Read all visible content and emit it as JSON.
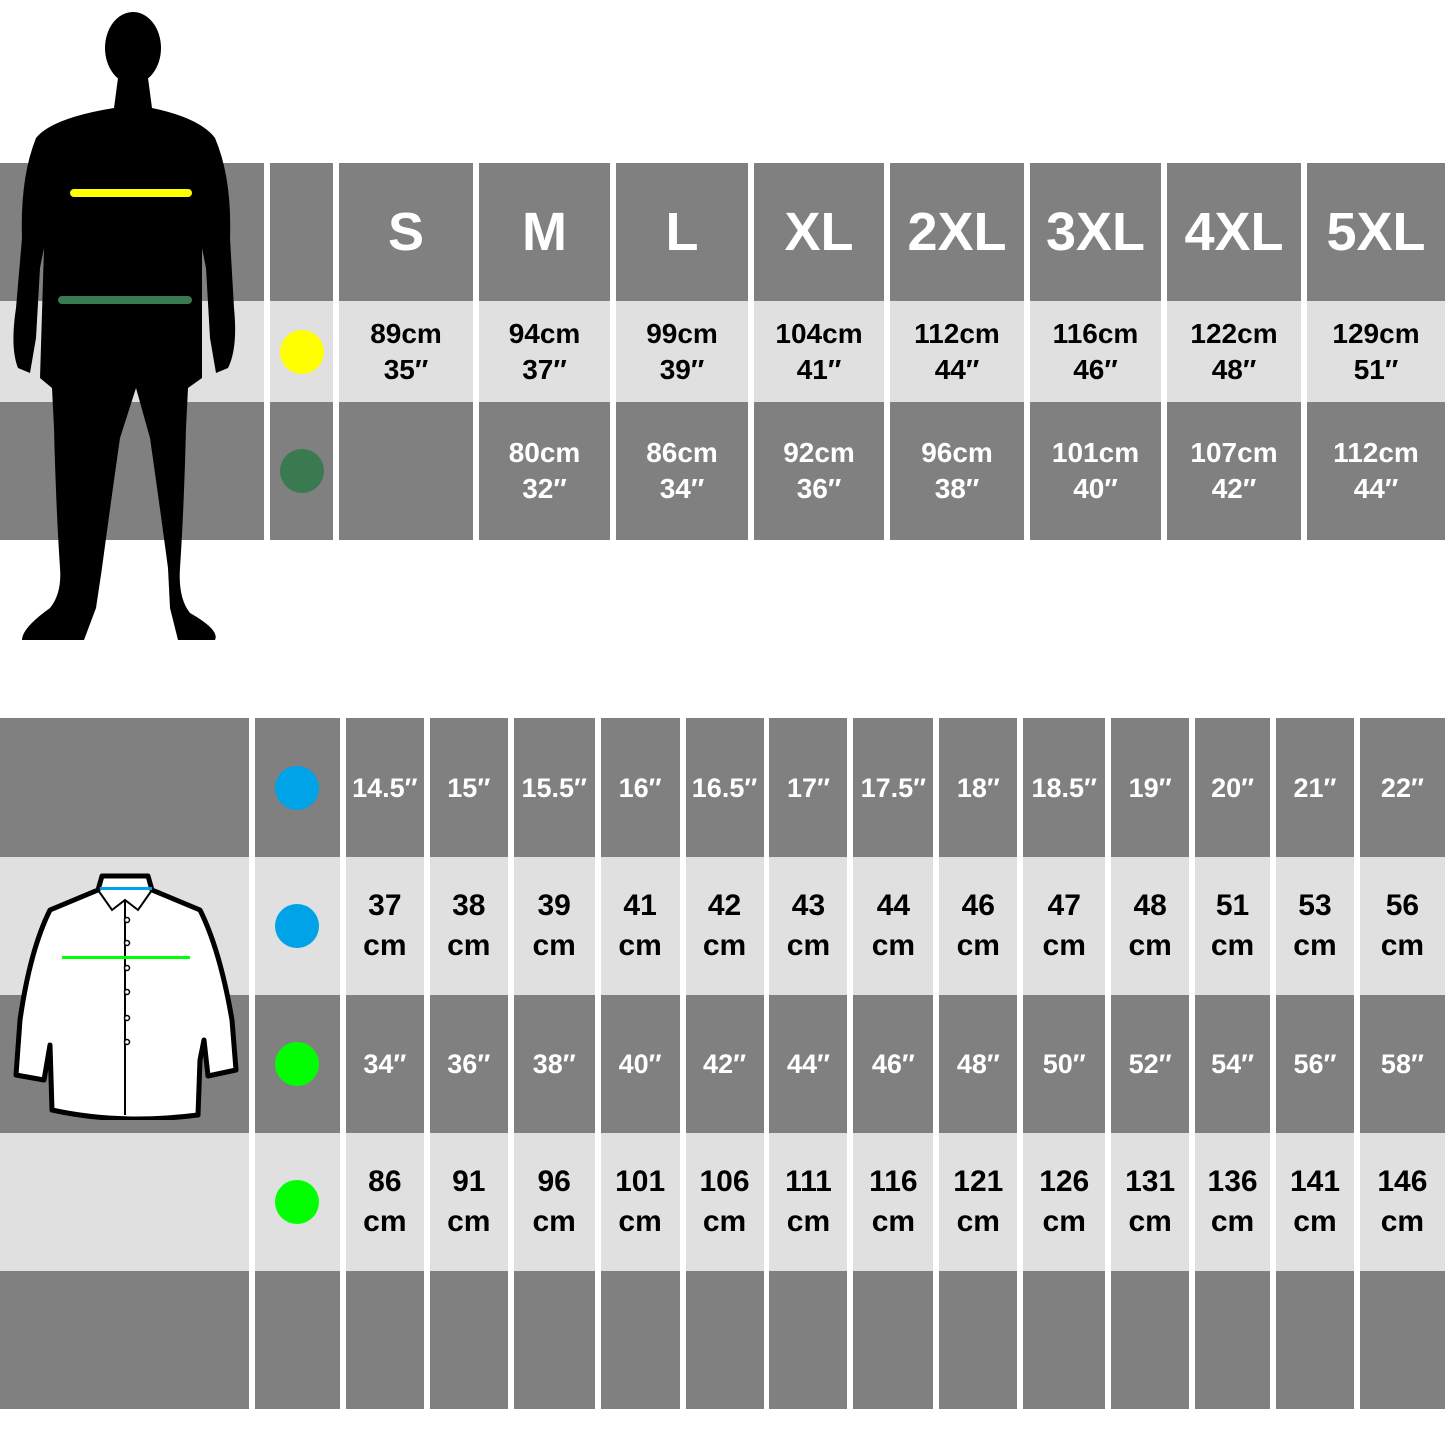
{
  "colors": {
    "dark_cell": "#808080",
    "light_cell": "#e0e0e0",
    "chest_marker": "#ffff00",
    "waist_marker": "#3a7a50",
    "neck_marker": "#00a2e8",
    "shirt_chest_marker": "#00ff00"
  },
  "top_table": {
    "sizes": [
      "S",
      "M",
      "L",
      "XL",
      "2XL",
      "3XL",
      "4XL",
      "5XL"
    ],
    "chest": [
      {
        "cm": "89cm",
        "in": "35″"
      },
      {
        "cm": "94cm",
        "in": "37″"
      },
      {
        "cm": "99cm",
        "in": "39″"
      },
      {
        "cm": "104cm",
        "in": "41″"
      },
      {
        "cm": "112cm",
        "in": "44″"
      },
      {
        "cm": "116cm",
        "in": "46″"
      },
      {
        "cm": "122cm",
        "in": "48″"
      },
      {
        "cm": "129cm",
        "in": "51″"
      }
    ],
    "waist": [
      {
        "cm": "",
        "in": ""
      },
      {
        "cm": "80cm",
        "in": "32″"
      },
      {
        "cm": "86cm",
        "in": "34″"
      },
      {
        "cm": "92cm",
        "in": "36″"
      },
      {
        "cm": "96cm",
        "in": "38″"
      },
      {
        "cm": "101cm",
        "in": "40″"
      },
      {
        "cm": "107cm",
        "in": "42″"
      },
      {
        "cm": "112cm",
        "in": "44″"
      }
    ]
  },
  "bottom_table": {
    "neck_in": [
      "14.5″",
      "15″",
      "15.5″",
      "16″",
      "16.5″",
      "17″",
      "17.5″",
      "18″",
      "18.5″",
      "19″",
      "20″",
      "21″",
      "22″"
    ],
    "neck_cm": [
      "37",
      "38",
      "39",
      "41",
      "42",
      "43",
      "44",
      "46",
      "47",
      "48",
      "51",
      "53",
      "56"
    ],
    "chest_in": [
      "34″",
      "36″",
      "38″",
      "40″",
      "42″",
      "44″",
      "46″",
      "48″",
      "50″",
      "52″",
      "54″",
      "56″",
      "58″"
    ],
    "chest_cm": [
      "86",
      "91",
      "96",
      "101",
      "106",
      "111",
      "116",
      "121",
      "126",
      "131",
      "136",
      "141",
      "146"
    ],
    "unit": "cm"
  }
}
